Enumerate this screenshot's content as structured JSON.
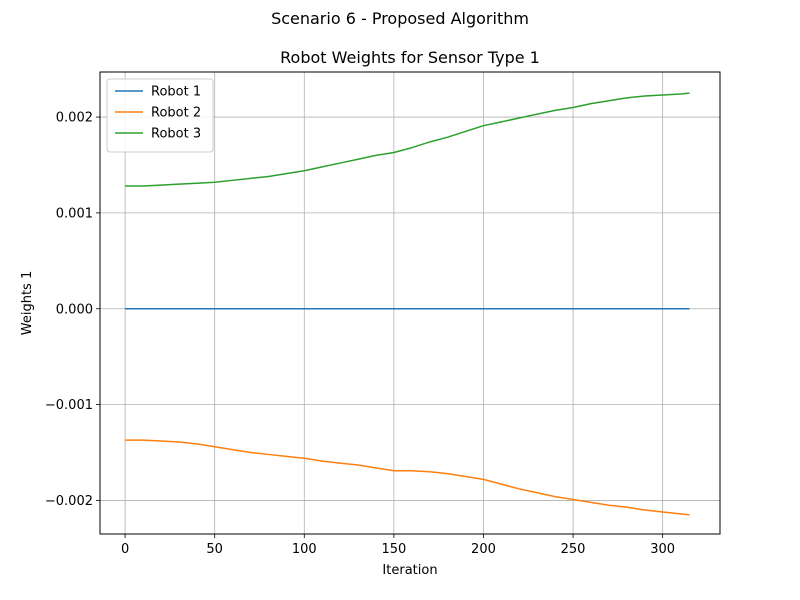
{
  "suptitle": "Scenario 6 - Proposed Algorithm",
  "chart_data": {
    "type": "line",
    "title": "Robot Weights for Sensor Type 1",
    "xlabel": "Iteration",
    "ylabel": "Weights 1",
    "xlim": [
      -14,
      332
    ],
    "ylim": [
      -0.00235,
      0.00247
    ],
    "xticks": [
      0,
      50,
      100,
      150,
      200,
      250,
      300
    ],
    "xtick_labels": [
      "0",
      "50",
      "100",
      "150",
      "200",
      "250",
      "300"
    ],
    "yticks": [
      -0.002,
      -0.001,
      0.0,
      0.001,
      0.002
    ],
    "ytick_labels": [
      "−0.002",
      "−0.001",
      "0.000",
      "0.001",
      "0.002"
    ],
    "grid": true,
    "legend_position": "upper-left",
    "series": [
      {
        "name": "Robot 1",
        "color": "#1f77b4",
        "x": [
          0,
          315
        ],
        "y": [
          0.0,
          0.0
        ]
      },
      {
        "name": "Robot 2",
        "color": "#ff7f0e",
        "x": [
          0,
          10,
          20,
          30,
          40,
          50,
          60,
          70,
          80,
          90,
          100,
          110,
          120,
          130,
          140,
          150,
          160,
          170,
          180,
          190,
          200,
          210,
          220,
          230,
          240,
          250,
          260,
          270,
          280,
          290,
          300,
          310,
          315
        ],
        "y": [
          -0.00137,
          -0.00137,
          -0.00138,
          -0.00139,
          -0.00141,
          -0.00144,
          -0.00147,
          -0.0015,
          -0.00152,
          -0.00154,
          -0.00156,
          -0.00159,
          -0.00161,
          -0.00163,
          -0.00166,
          -0.00169,
          -0.00169,
          -0.0017,
          -0.00172,
          -0.00175,
          -0.00178,
          -0.00183,
          -0.00188,
          -0.00192,
          -0.00196,
          -0.00199,
          -0.00202,
          -0.00205,
          -0.00207,
          -0.0021,
          -0.00212,
          -0.00214,
          -0.00215
        ]
      },
      {
        "name": "Robot 3",
        "color": "#2ca02c",
        "x": [
          0,
          10,
          20,
          30,
          40,
          50,
          60,
          70,
          80,
          90,
          100,
          110,
          120,
          130,
          140,
          150,
          160,
          170,
          180,
          190,
          200,
          210,
          220,
          230,
          240,
          250,
          260,
          270,
          280,
          290,
          300,
          310,
          315
        ],
        "y": [
          0.00128,
          0.00128,
          0.00129,
          0.0013,
          0.00131,
          0.00132,
          0.00134,
          0.00136,
          0.00138,
          0.00141,
          0.00144,
          0.00148,
          0.00152,
          0.00156,
          0.0016,
          0.00163,
          0.00168,
          0.00174,
          0.00179,
          0.00185,
          0.00191,
          0.00195,
          0.00199,
          0.00203,
          0.00207,
          0.0021,
          0.00214,
          0.00217,
          0.0022,
          0.00222,
          0.00223,
          0.00224,
          0.00225
        ]
      }
    ]
  }
}
